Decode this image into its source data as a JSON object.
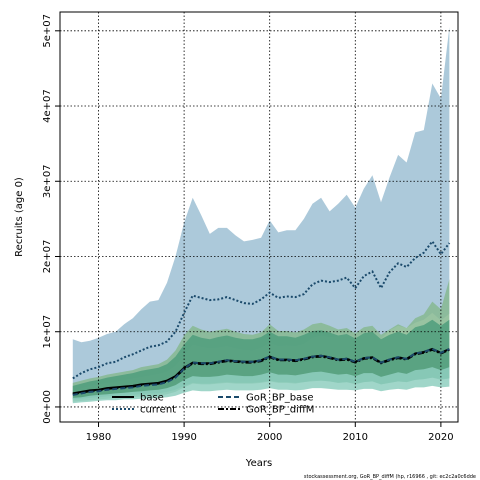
{
  "chart_data": {
    "type": "area",
    "xlabel": "Years",
    "ylabel": "Recruits (age 0)",
    "xlim": [
      1975.5,
      2022
    ],
    "ylim": [
      -2000000,
      52500000
    ],
    "x_ticks": [
      1980,
      1990,
      2000,
      2010,
      2020
    ],
    "y_ticks": [
      0,
      10000000,
      20000000,
      30000000,
      40000000,
      50000000
    ],
    "y_tick_labels": [
      "0e+00",
      "1e+07",
      "2e+07",
      "3e+07",
      "4e+07",
      "5e+07"
    ],
    "grid": true,
    "legend_position": "bottom-left",
    "footer": "stockassessment.org, GoR_BP_diffM (hp, r16966 , git: ec2c2a0c6dde",
    "years": [
      1977,
      1978,
      1979,
      1980,
      1981,
      1982,
      1983,
      1984,
      1985,
      1986,
      1987,
      1988,
      1989,
      1990,
      1991,
      1992,
      1993,
      1994,
      1995,
      1996,
      1997,
      1998,
      1999,
      2000,
      2001,
      2002,
      2003,
      2004,
      2005,
      2006,
      2007,
      2008,
      2009,
      2010,
      2011,
      2012,
      2013,
      2014,
      2015,
      2016,
      2017,
      2018,
      2019,
      2020,
      2021
    ],
    "series": [
      {
        "name": "current",
        "color": "#1b4a6b",
        "band_color": "#9dc0d4",
        "line_style": "dotted",
        "values": [
          3800000,
          4500000,
          5000000,
          5300000,
          5800000,
          6000000,
          6600000,
          7000000,
          7500000,
          8000000,
          8200000,
          8700000,
          10000000,
          12500000,
          14800000,
          14500000,
          14200000,
          14300000,
          14600000,
          14200000,
          13800000,
          13700000,
          14300000,
          15200000,
          14500000,
          14700000,
          14600000,
          15000000,
          16300000,
          16800000,
          16600000,
          16800000,
          17200000,
          15800000,
          17400000,
          18000000,
          15800000,
          17900000,
          19100000,
          18600000,
          19800000,
          20500000,
          22000000,
          20300000,
          21800000
        ],
        "lower": [
          2000000,
          2500000,
          2800000,
          3000000,
          3200000,
          3300000,
          3600000,
          3800000,
          4000000,
          4200000,
          4400000,
          4700000,
          5500000,
          6800000,
          8300000,
          8000000,
          7800000,
          7900000,
          8100000,
          7800000,
          7600000,
          7500000,
          7900000,
          8500000,
          8100000,
          8200000,
          8100000,
          8400000,
          9200000,
          9500000,
          9300000,
          9400000,
          9700000,
          9000000,
          9800000,
          10000000,
          9000000,
          10200000,
          10800000,
          10500000,
          11200000,
          11600000,
          12500000,
          11500000,
          12400000
        ],
        "upper": [
          9000000,
          8600000,
          8800000,
          9200000,
          9700000,
          10000000,
          11000000,
          11800000,
          13000000,
          14000000,
          14200000,
          16500000,
          20000000,
          24500000,
          27800000,
          25500000,
          23000000,
          23800000,
          23800000,
          22800000,
          22000000,
          22200000,
          22500000,
          24800000,
          23200000,
          23500000,
          23500000,
          25000000,
          27000000,
          27800000,
          26000000,
          27000000,
          28200000,
          26500000,
          29000000,
          30800000,
          27200000,
          30500000,
          33500000,
          32500000,
          36500000,
          36800000,
          43000000,
          41000000,
          50500000
        ]
      },
      {
        "name": "GoR_BP_base",
        "color": "#1b4a6b",
        "band_color": "#86b991",
        "line_style": "dashed",
        "values": [
          1600000,
          1800000,
          2000000,
          2100000,
          2300000,
          2400000,
          2500000,
          2600000,
          2800000,
          2900000,
          3000000,
          3300000,
          3900000,
          5100000,
          5900000,
          5800000,
          5800000,
          6000000,
          6200000,
          6100000,
          6000000,
          6000000,
          6200000,
          6700000,
          6300000,
          6300000,
          6200000,
          6400000,
          6700000,
          6800000,
          6600000,
          6300000,
          6400000,
          6000000,
          6500000,
          6600000,
          5900000,
          6300000,
          6600000,
          6400000,
          7100000,
          7300000,
          7700000,
          7200000,
          7700000
        ],
        "lower": [
          700000,
          800000,
          900000,
          1000000,
          1100000,
          1200000,
          1200000,
          1300000,
          1400000,
          1500000,
          1500000,
          1700000,
          2000000,
          2600000,
          3100000,
          3000000,
          3000000,
          3100000,
          3200000,
          3100000,
          3100000,
          3100000,
          3200000,
          3400000,
          3200000,
          3200000,
          3100000,
          3300000,
          3400000,
          3500000,
          3400000,
          3200000,
          3300000,
          3000000,
          3300000,
          3400000,
          3000000,
          3200000,
          3400000,
          3300000,
          3600000,
          3700000,
          3900000,
          3600000,
          3800000
        ],
        "upper": [
          3200000,
          3500000,
          3800000,
          4000000,
          4300000,
          4500000,
          4700000,
          4900000,
          5300000,
          5500000,
          5700000,
          6300000,
          7500000,
          9500000,
          10800000,
          10300000,
          10000000,
          10200000,
          10400000,
          10000000,
          9700000,
          9600000,
          9900000,
          11000000,
          10100000,
          10100000,
          9900000,
          10300000,
          11000000,
          11200000,
          10800000,
          10300000,
          10500000,
          9800000,
          10600000,
          10800000,
          9600000,
          10300000,
          11000000,
          10500000,
          11800000,
          12300000,
          14000000,
          13000000,
          17000000
        ]
      },
      {
        "name": "GoR_BP_diffM",
        "color": "#000000",
        "band_color": "#4f9e7c",
        "line_style": "dash-dot",
        "values": [
          1700000,
          1900000,
          2100000,
          2200000,
          2400000,
          2500000,
          2600000,
          2700000,
          2900000,
          3000000,
          3100000,
          3400000,
          4000000,
          5000000,
          5800000,
          5700000,
          5700000,
          5900000,
          6100000,
          6000000,
          5900000,
          5900000,
          6100000,
          6600000,
          6200000,
          6200000,
          6100000,
          6300000,
          6600000,
          6700000,
          6500000,
          6200000,
          6300000,
          5900000,
          6400000,
          6500000,
          5800000,
          6200000,
          6500000,
          6300000,
          7000000,
          7200000,
          7600000,
          7100000,
          7600000
        ],
        "lower": [
          1000000,
          1100000,
          1200000,
          1300000,
          1400000,
          1500000,
          1500000,
          1600000,
          1700000,
          1800000,
          1800000,
          2000000,
          2300000,
          2800000,
          3200000,
          3100000,
          3100000,
          3200000,
          3300000,
          3200000,
          3200000,
          3200000,
          3300000,
          3500000,
          3300000,
          3300000,
          3200000,
          3300000,
          3500000,
          3500000,
          3400000,
          3200000,
          3300000,
          3100000,
          3300000,
          3400000,
          3000000,
          3200000,
          3400000,
          3300000,
          3600000,
          3700000,
          3900000,
          3700000,
          3800000
        ],
        "upper": [
          2800000,
          3100000,
          3400000,
          3600000,
          3900000,
          4100000,
          4300000,
          4500000,
          4800000,
          5000000,
          5200000,
          5700000,
          6700000,
          8300000,
          9600000,
          9200000,
          9000000,
          9300000,
          9500000,
          9200000,
          9000000,
          9000000,
          9300000,
          10000000,
          9400000,
          9400000,
          9200000,
          9600000,
          10100000,
          10200000,
          9900000,
          9500000,
          9700000,
          9100000,
          9800000,
          10000000,
          9000000,
          9600000,
          10000000,
          9600000,
          10600000,
          10900000,
          11600000,
          10800000,
          11600000
        ]
      },
      {
        "name": "base",
        "color": "#000000",
        "band_color": "#8fcfc0",
        "line_style": "solid",
        "values": [
          1800000,
          2000000,
          2200000,
          2300000,
          2500000,
          2600000,
          2700000,
          2800000,
          3000000,
          3100000,
          3200000,
          3500000,
          4100000,
          5200000,
          5900000,
          5800000,
          5800000,
          6000000,
          6200000,
          6100000,
          6000000,
          6000000,
          6200000,
          6700000,
          6300000,
          6300000,
          6200000,
          6400000,
          6700000,
          6800000,
          6600000,
          6300000,
          6400000,
          6000000,
          6500000,
          6600000,
          5900000,
          6300000,
          6600000,
          6400000,
          7100000,
          7300000,
          7700000,
          7200000,
          7700000
        ],
        "lower": [
          500000,
          600000,
          700000,
          800000,
          900000,
          900000,
          1000000,
          1000000,
          1100000,
          1100000,
          1200000,
          1300000,
          1500000,
          1900000,
          2200000,
          2100000,
          2100000,
          2200000,
          2300000,
          2200000,
          2200000,
          2200000,
          2300000,
          2500000,
          2300000,
          2300000,
          2200000,
          2300000,
          2500000,
          2500000,
          2400000,
          2300000,
          2300000,
          2200000,
          2400000,
          2400000,
          2100000,
          2300000,
          2400000,
          2300000,
          2600000,
          2600000,
          2800000,
          2600000,
          2700000
        ],
        "upper": [
          1200000,
          1300000,
          1500000,
          1600000,
          1700000,
          1800000,
          1900000,
          2000000,
          2100000,
          2200000,
          2300000,
          2500000,
          2900000,
          3600000,
          4100000,
          4000000,
          4000000,
          4100000,
          4300000,
          4200000,
          4100000,
          4100000,
          4300000,
          4600000,
          4300000,
          4300000,
          4200000,
          4400000,
          4600000,
          4700000,
          4500000,
          4300000,
          4400000,
          4100000,
          4500000,
          4500000,
          4000000,
          4300000,
          4600000,
          4400000,
          4900000,
          5000000,
          5300000,
          4900000,
          5300000
        ]
      }
    ],
    "legend": [
      {
        "label": "base",
        "style": "solid",
        "color": "#000000"
      },
      {
        "label": "current",
        "style": "dotted",
        "color": "#1b4a6b"
      },
      {
        "label": "GoR_BP_base",
        "style": "dashed",
        "color": "#1b4a6b"
      },
      {
        "label": "GoR_BP_diffM",
        "style": "dash-dot",
        "color": "#000000"
      }
    ]
  }
}
